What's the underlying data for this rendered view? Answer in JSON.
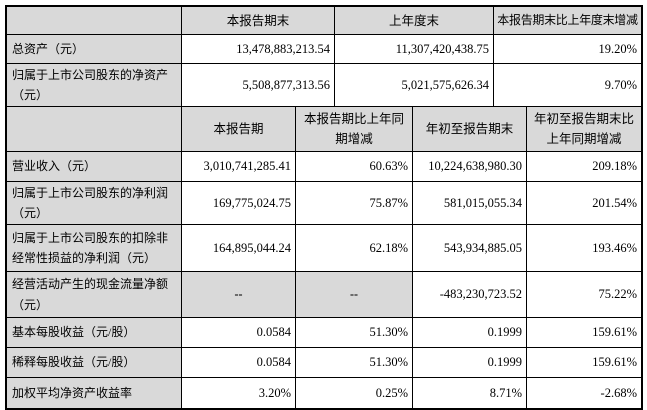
{
  "colors": {
    "header_and_label_bg": "#d9d9d9",
    "data_cell_bg": "#ffffff",
    "border": "#000000",
    "text": "#000000"
  },
  "balance_section": {
    "headers": {
      "corner": "",
      "current_period_end": "本报告期末",
      "prior_year_end": "上年度末",
      "change": "本报告期末比上年度末增减"
    },
    "rows": [
      {
        "label": "总资产（元）",
        "values": [
          "13,478,883,213.54",
          "11,307,420,438.75",
          "19.20%"
        ]
      },
      {
        "label": "归属于上市公司股东的净资产（元）",
        "values": [
          "5,508,877,313.56",
          "5,021,575,626.34",
          "9.70%"
        ]
      }
    ]
  },
  "income_section": {
    "headers": {
      "corner": "",
      "current_period": "本报告期",
      "current_period_change": "本报告期比上年同期增减",
      "year_to_date": "年初至报告期末",
      "year_to_date_change": "年初至报告期末比上年同期增减"
    },
    "rows": [
      {
        "label": "营业收入（元）",
        "values": [
          "3,010,741,285.41",
          "60.63%",
          "10,224,638,980.30",
          "209.18%"
        ]
      },
      {
        "label": "归属于上市公司股东的净利润（元）",
        "values": [
          "169,775,024.75",
          "75.87%",
          "581,015,055.34",
          "201.54%"
        ]
      },
      {
        "label": "归属于上市公司股东的扣除非经常性损益的净利润（元）",
        "values": [
          "164,895,044.24",
          "62.18%",
          "543,934,885.05",
          "193.46%"
        ]
      },
      {
        "label": "经营活动产生的现金流量净额（元）",
        "values": [
          "--",
          "--",
          "-483,230,723.52",
          "75.22%"
        ]
      },
      {
        "label": "基本每股收益（元/股）",
        "values": [
          "0.0584",
          "51.30%",
          "0.1999",
          "159.61%"
        ]
      },
      {
        "label": "稀释每股收益（元/股）",
        "values": [
          "0.0584",
          "51.30%",
          "0.1999",
          "159.61%"
        ]
      },
      {
        "label": "加权平均净资产收益率",
        "values": [
          "3.20%",
          "0.25%",
          "8.71%",
          "-2.68%"
        ]
      }
    ]
  }
}
